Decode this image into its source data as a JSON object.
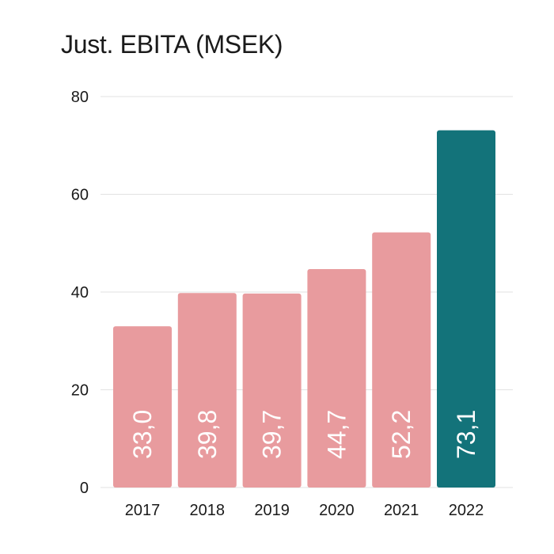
{
  "chart_data": {
    "type": "bar",
    "title": "Just. EBITA (MSEK)",
    "xlabel": "",
    "ylabel": "",
    "categories": [
      "2017",
      "2018",
      "2019",
      "2020",
      "2021",
      "2022"
    ],
    "values": [
      33.0,
      39.8,
      39.7,
      44.7,
      52.2,
      73.1
    ],
    "value_labels": [
      "33,0",
      "39,8",
      "39,7",
      "44,7",
      "52,2",
      "73,1"
    ],
    "ylim": [
      0,
      80
    ],
    "yticks": [
      0,
      20,
      40,
      60,
      80
    ],
    "grid": true,
    "legend": "none",
    "colors": {
      "default_bar": "#e89b9e",
      "highlight_bar": "#13737a",
      "grid": "#e2e2e2",
      "text": "#1a1a1a",
      "value_text": "#ffffff"
    },
    "highlight_index": 5
  }
}
